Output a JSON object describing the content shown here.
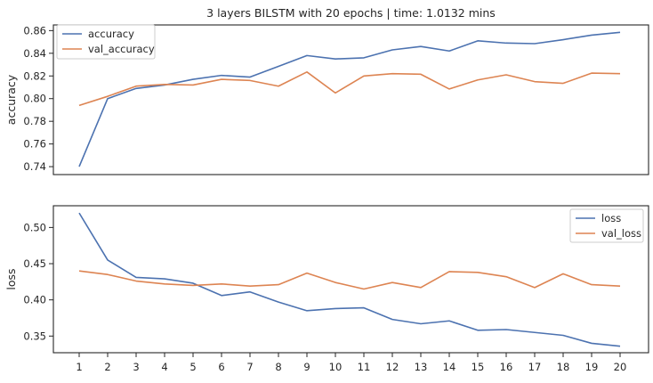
{
  "chart_data": [
    {
      "type": "line",
      "title": "3 layers BILSTM with 20 epochs | time: 1.0132 mins",
      "ylabel": "accuracy",
      "xlabel": "",
      "x": [
        1,
        2,
        3,
        4,
        5,
        6,
        7,
        8,
        9,
        10,
        11,
        12,
        13,
        14,
        15,
        16,
        17,
        18,
        19,
        20
      ],
      "ylim": [
        0.733,
        0.865
      ],
      "yticks": [
        0.74,
        0.76,
        0.78,
        0.8,
        0.82,
        0.84,
        0.86
      ],
      "ytick_labels": [
        "0.74",
        "0.76",
        "0.78",
        "0.80",
        "0.82",
        "0.84",
        "0.86"
      ],
      "legend_position": "top-left",
      "series": [
        {
          "name": "accuracy",
          "color": "#4c72b0",
          "values": [
            0.74,
            0.8,
            0.809,
            0.812,
            0.817,
            0.8205,
            0.819,
            0.8285,
            0.838,
            0.835,
            0.836,
            0.843,
            0.846,
            0.842,
            0.851,
            0.849,
            0.8485,
            0.852,
            0.856,
            0.8585
          ]
        },
        {
          "name": "val_accuracy",
          "color": "#dd8452",
          "values": [
            0.794,
            0.802,
            0.811,
            0.8125,
            0.812,
            0.817,
            0.816,
            0.811,
            0.8235,
            0.805,
            0.82,
            0.822,
            0.8215,
            0.8085,
            0.8165,
            0.821,
            0.815,
            0.8135,
            0.8225,
            0.822
          ]
        }
      ]
    },
    {
      "type": "line",
      "title": "",
      "ylabel": "loss",
      "xlabel": "",
      "x": [
        1,
        2,
        3,
        4,
        5,
        6,
        7,
        8,
        9,
        10,
        11,
        12,
        13,
        14,
        15,
        16,
        17,
        18,
        19,
        20
      ],
      "xtick_labels": [
        "1",
        "2",
        "3",
        "4",
        "5",
        "6",
        "7",
        "8",
        "9",
        "10",
        "11",
        "12",
        "13",
        "14",
        "15",
        "16",
        "17",
        "18",
        "19",
        "20"
      ],
      "ylim": [
        0.327,
        0.53
      ],
      "yticks": [
        0.35,
        0.4,
        0.45,
        0.5
      ],
      "ytick_labels": [
        "0.35",
        "0.40",
        "0.45",
        "0.50"
      ],
      "legend_position": "top-right",
      "series": [
        {
          "name": "loss",
          "color": "#4c72b0",
          "values": [
            0.52,
            0.455,
            0.431,
            0.429,
            0.423,
            0.406,
            0.411,
            0.397,
            0.385,
            0.388,
            0.389,
            0.373,
            0.367,
            0.371,
            0.358,
            0.359,
            0.355,
            0.351,
            0.34,
            0.336
          ]
        },
        {
          "name": "val_loss",
          "color": "#dd8452",
          "values": [
            0.44,
            0.435,
            0.426,
            0.422,
            0.42,
            0.422,
            0.419,
            0.421,
            0.437,
            0.424,
            0.415,
            0.424,
            0.417,
            0.439,
            0.438,
            0.432,
            0.417,
            0.436,
            0.421,
            0.419
          ]
        }
      ]
    }
  ]
}
